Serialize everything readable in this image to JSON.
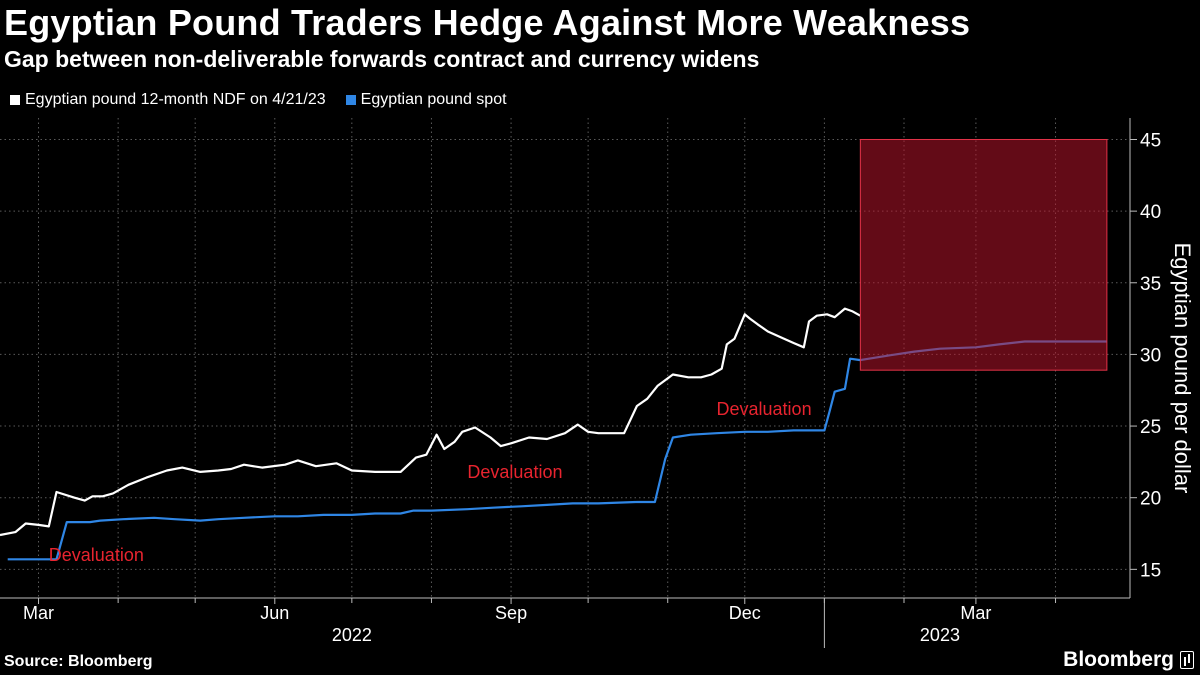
{
  "title": "Egyptian Pound Traders Hedge Against More Weakness",
  "subtitle": "Gap between non-deliverable forwards contract and currency widens",
  "source": "Source: Bloomberg",
  "brand": "Bloomberg",
  "colors": {
    "background": "#000000",
    "ndf": "#ffffff",
    "spot": "#2f86e5",
    "annotation": "#e8242f",
    "highlight": "#6a0f1e"
  },
  "chart_data": {
    "type": "line",
    "ylabel": "Egyptian pound per dollar",
    "ylim": [
      13,
      46.5
    ],
    "yticks": [
      15,
      20,
      25,
      30,
      35,
      40,
      45
    ],
    "xlim": [
      "2022-02-14",
      "2023-04-30"
    ],
    "xticks": [
      {
        "date": "2022-03-01",
        "label": "Mar"
      },
      {
        "date": "2022-06-01",
        "label": "Jun"
      },
      {
        "date": "2022-09-01",
        "label": "Sep"
      },
      {
        "date": "2022-12-01",
        "label": "Dec"
      },
      {
        "date": "2023-03-01",
        "label": "Mar"
      }
    ],
    "minor_ticks": [
      "2022-04-01",
      "2022-05-01",
      "2022-07-01",
      "2022-08-01",
      "2022-10-01",
      "2022-11-01",
      "2023-01-01",
      "2023-02-01",
      "2023-04-01"
    ],
    "years": [
      {
        "label": "2022",
        "center": "2022-07-01"
      },
      {
        "label": "2023",
        "center": "2023-02-15"
      }
    ],
    "year_divider": "2023-01-01",
    "grid": true,
    "legend_position": "top-left",
    "highlight": {
      "x": [
        "2023-01-15",
        "2023-04-21"
      ],
      "y": [
        28.9,
        45
      ]
    },
    "annotations": [
      {
        "text": "Devaluation",
        "date": "2022-03-05",
        "value": 16.0
      },
      {
        "text": "Devaluation",
        "date": "2022-08-15",
        "value": 21.8
      },
      {
        "text": "Devaluation",
        "date": "2022-11-20",
        "value": 26.2
      }
    ],
    "series": [
      {
        "name": "Egyptian pound 12-month NDF on 4/21/23",
        "color": "#ffffff",
        "x": [
          "2022-02-14",
          "2022-02-20",
          "2022-02-24",
          "2022-03-01",
          "2022-03-05",
          "2022-03-08",
          "2022-03-15",
          "2022-03-19",
          "2022-03-22",
          "2022-03-26",
          "2022-03-30",
          "2022-04-05",
          "2022-04-12",
          "2022-04-20",
          "2022-04-26",
          "2022-05-03",
          "2022-05-10",
          "2022-05-15",
          "2022-05-20",
          "2022-05-27",
          "2022-06-05",
          "2022-06-10",
          "2022-06-17",
          "2022-06-25",
          "2022-07-01",
          "2022-07-10",
          "2022-07-20",
          "2022-07-26",
          "2022-07-30",
          "2022-08-03",
          "2022-08-06",
          "2022-08-10",
          "2022-08-13",
          "2022-08-18",
          "2022-08-24",
          "2022-08-28",
          "2022-09-01",
          "2022-09-08",
          "2022-09-15",
          "2022-09-22",
          "2022-09-27",
          "2022-10-01",
          "2022-10-05",
          "2022-10-10",
          "2022-10-15",
          "2022-10-20",
          "2022-10-24",
          "2022-10-28",
          "2022-11-03",
          "2022-11-09",
          "2022-11-14",
          "2022-11-18",
          "2022-11-22",
          "2022-11-24",
          "2022-11-27",
          "2022-12-01",
          "2022-12-03",
          "2022-12-06",
          "2022-12-10",
          "2022-12-15",
          "2022-12-20",
          "2022-12-24",
          "2022-12-26",
          "2022-12-29",
          "2023-01-02",
          "2023-01-05",
          "2023-01-09",
          "2023-01-12",
          "2023-01-15"
        ],
        "values": [
          17.4,
          17.6,
          18.2,
          18.1,
          18.0,
          20.4,
          20.0,
          19.8,
          20.1,
          20.1,
          20.3,
          20.9,
          21.4,
          21.9,
          22.1,
          21.8,
          21.9,
          22.0,
          22.3,
          22.1,
          22.3,
          22.6,
          22.2,
          22.4,
          21.9,
          21.8,
          21.8,
          22.8,
          23.0,
          24.4,
          23.4,
          23.9,
          24.6,
          24.9,
          24.2,
          23.6,
          23.8,
          24.2,
          24.1,
          24.5,
          25.1,
          24.6,
          24.5,
          24.5,
          24.5,
          26.4,
          26.9,
          27.8,
          28.6,
          28.4,
          28.4,
          28.6,
          29.0,
          30.7,
          31.1,
          32.8,
          32.5,
          32.1,
          31.6,
          31.2,
          30.8,
          30.5,
          32.3,
          32.7,
          32.8,
          32.6,
          33.2,
          33.0,
          32.7
        ]
      },
      {
        "name": "Egyptian pound spot",
        "color": "#2f86e5",
        "x": [
          "2022-02-17",
          "2022-03-08",
          "2022-03-12",
          "2022-03-21",
          "2022-03-25",
          "2022-04-03",
          "2022-04-15",
          "2022-04-23",
          "2022-05-03",
          "2022-05-10",
          "2022-05-20",
          "2022-06-01",
          "2022-06-10",
          "2022-06-20",
          "2022-07-01",
          "2022-07-10",
          "2022-07-20",
          "2022-07-25",
          "2022-08-01",
          "2022-08-15",
          "2022-08-25",
          "2022-09-05",
          "2022-09-15",
          "2022-09-25",
          "2022-10-05",
          "2022-10-20",
          "2022-10-27",
          "2022-10-31",
          "2022-11-03",
          "2022-11-10",
          "2022-11-20",
          "2022-12-01",
          "2022-12-10",
          "2022-12-20",
          "2023-01-01",
          "2023-01-03",
          "2023-01-05",
          "2023-01-09",
          "2023-01-11",
          "2023-01-15",
          "2023-01-25",
          "2023-02-05",
          "2023-02-15",
          "2023-03-01",
          "2023-03-10",
          "2023-03-20",
          "2023-04-01",
          "2023-04-10",
          "2023-04-21"
        ],
        "values": [
          15.7,
          15.7,
          18.3,
          18.3,
          18.4,
          18.5,
          18.6,
          18.5,
          18.4,
          18.5,
          18.6,
          18.7,
          18.7,
          18.8,
          18.8,
          18.9,
          18.9,
          19.1,
          19.1,
          19.2,
          19.3,
          19.4,
          19.5,
          19.6,
          19.6,
          19.7,
          19.7,
          22.7,
          24.2,
          24.4,
          24.5,
          24.6,
          24.6,
          24.7,
          24.7,
          26.0,
          27.4,
          27.6,
          29.7,
          29.6,
          29.9,
          30.2,
          30.4,
          30.5,
          30.7,
          30.9,
          30.9,
          30.9,
          30.9
        ]
      }
    ]
  }
}
